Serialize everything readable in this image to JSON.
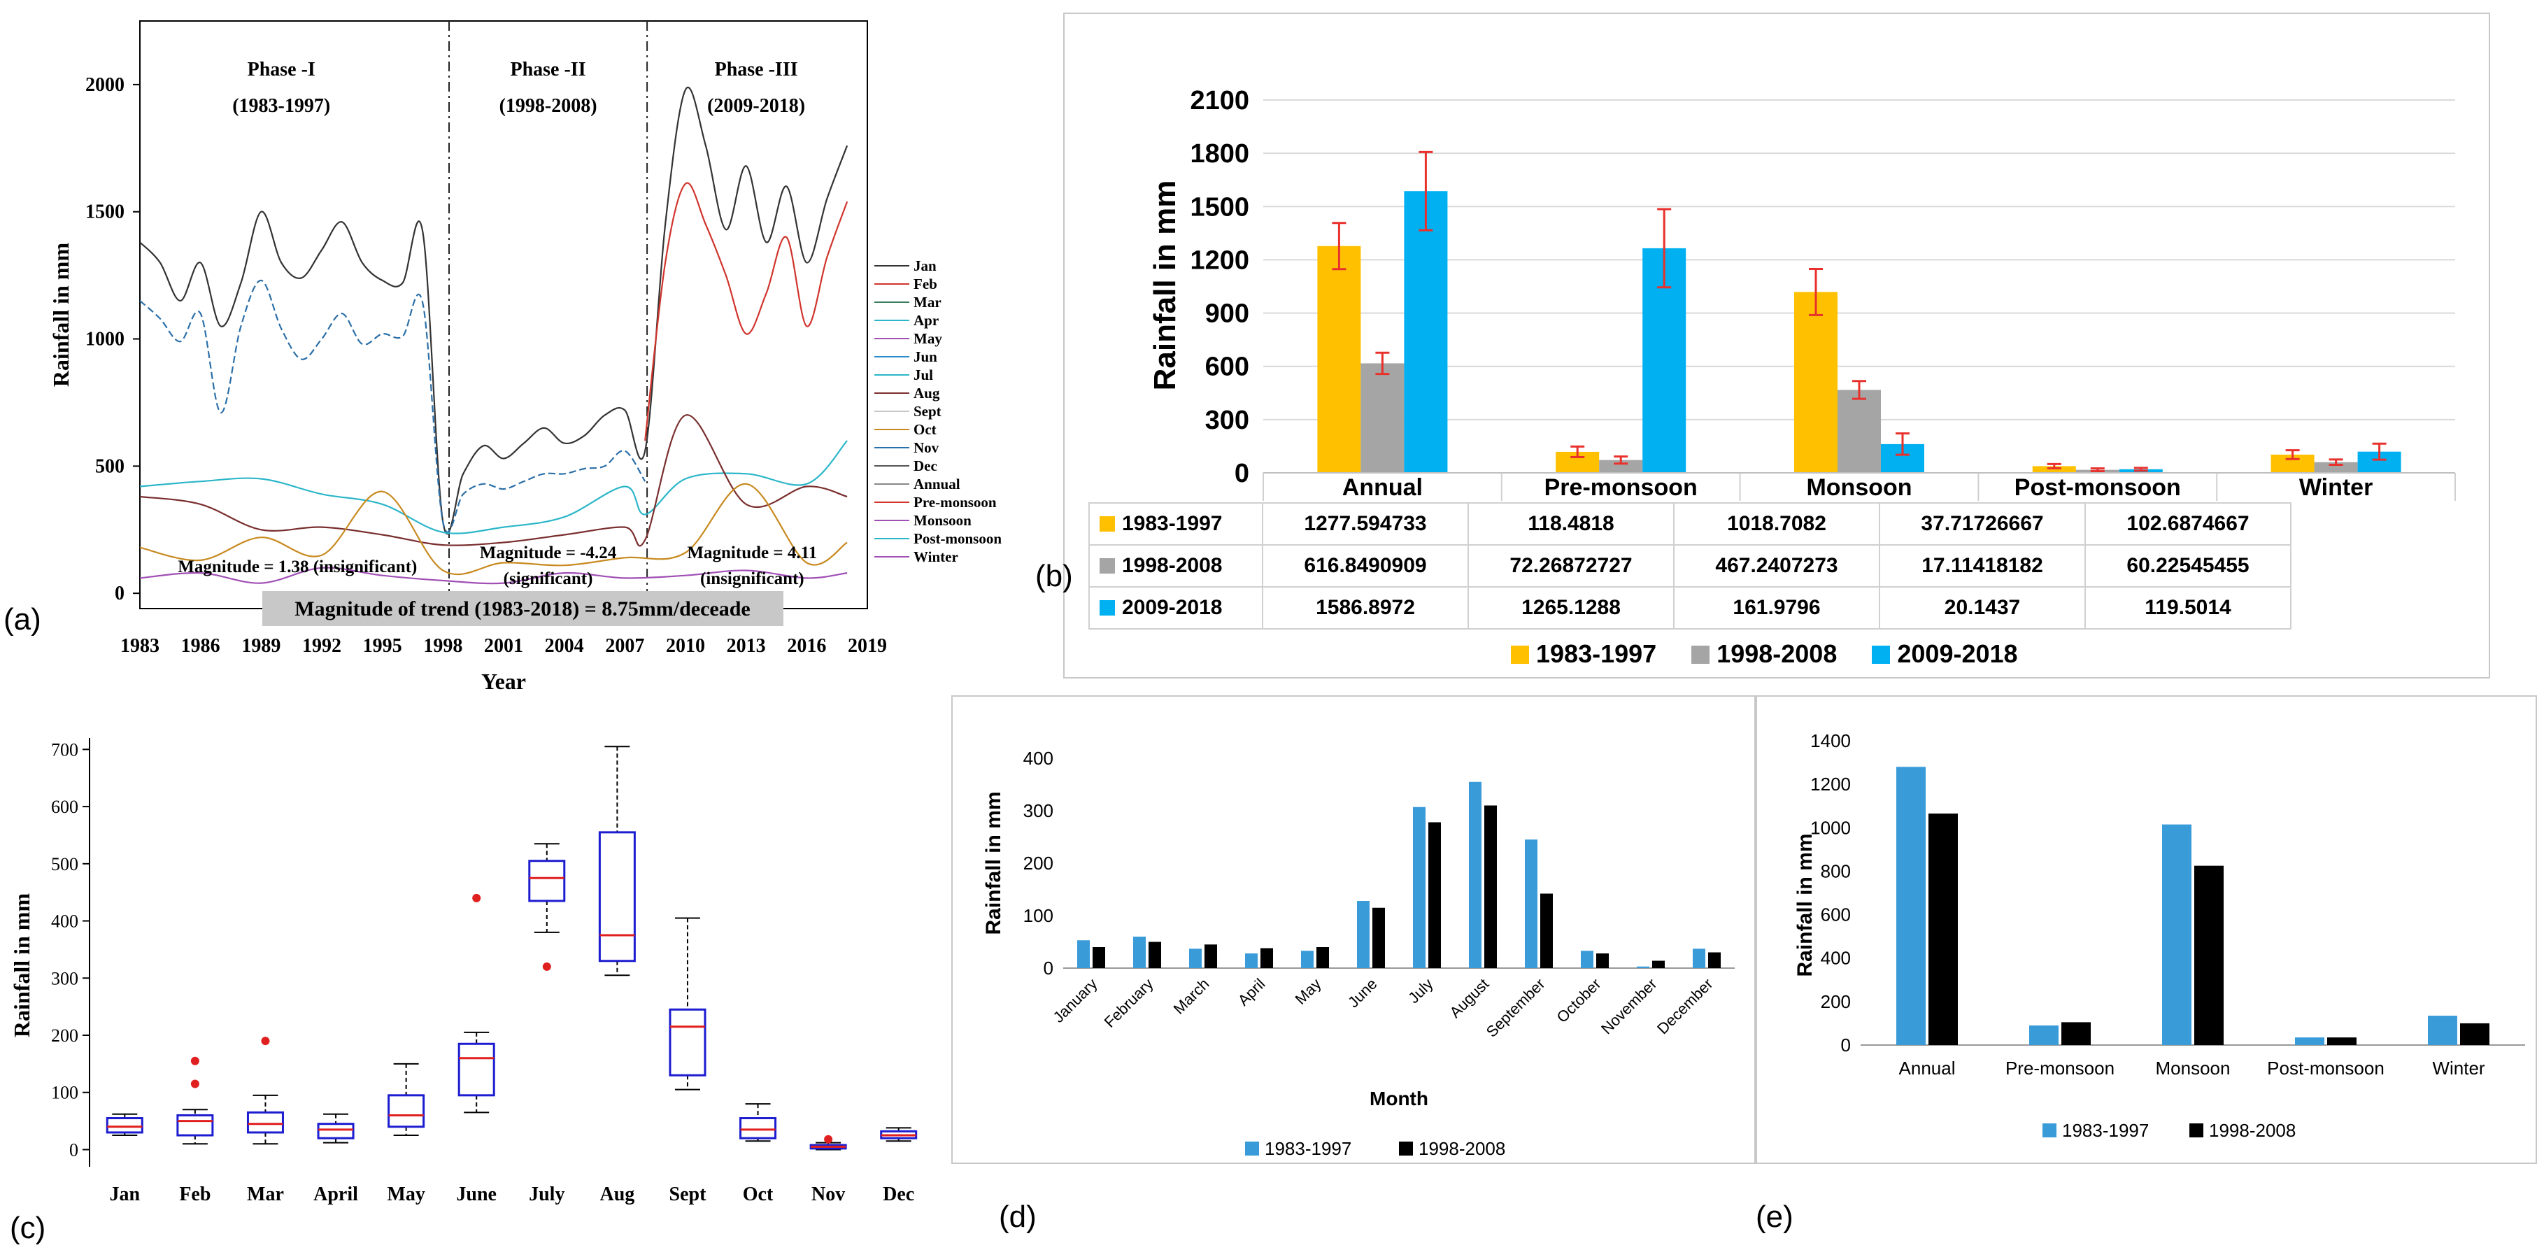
{
  "chart_data": [
    {
      "id": "a",
      "type": "line",
      "panel_label": "(a)",
      "xlabel": "Year",
      "ylabel": "Rainfall in mm",
      "x_ticks": [
        "1983",
        "1986",
        "1989",
        "1992",
        "1995",
        "1998",
        "2001",
        "2004",
        "2007",
        "2010",
        "2013",
        "2016",
        "2019"
      ],
      "y_ticks": [
        0,
        500,
        1000,
        1500,
        2000
      ],
      "xlim": [
        1983,
        2019
      ],
      "ylim": [
        -60,
        2250
      ],
      "phases": [
        {
          "name": "Phase -I",
          "range": "(1983-1997)"
        },
        {
          "name": "Phase -II",
          "range": "(1998-2008)"
        },
        {
          "name": "Phase -III",
          "range": "(2009-2018)"
        }
      ],
      "annotations": [
        "Magnitude = 1.38 (insignificant)",
        "Magnitude = -4.24",
        "(significant)",
        "Magnitude = 4.11",
        "(insignificant)"
      ],
      "trend_note": "Magnitude of trend (1983-2018) = 8.75mm/deceade",
      "legend": [
        "Jan",
        "Feb",
        "Mar",
        "Apr",
        "May",
        "Jun",
        "Jul",
        "Aug",
        "Sept",
        "Oct",
        "Nov",
        "Dec",
        "Annual",
        "Pre-monsoon",
        "Monsoon",
        "Post-monsoon",
        "Winter"
      ],
      "series": [
        {
          "name": "Jan",
          "color": "#333333",
          "x": [
            1983,
            1984,
            1985,
            1986,
            1987,
            1988,
            1989,
            1990,
            1991,
            1992,
            1993,
            1994,
            1995,
            1996,
            1997,
            1998,
            1999,
            2000,
            2001,
            2002,
            2003,
            2004,
            2005,
            2006,
            2007,
            2008,
            2009,
            2010,
            2011,
            2012,
            2013,
            2014,
            2015,
            2016,
            2017,
            2018
          ],
          "values": [
            1380,
            1300,
            1150,
            1300,
            1050,
            1220,
            1500,
            1300,
            1240,
            1350,
            1460,
            1300,
            1230,
            1220,
            1420,
            280,
            470,
            580,
            530,
            590,
            650,
            590,
            620,
            700,
            720,
            560,
            1450,
            1980,
            1760,
            1430,
            1680,
            1380,
            1600,
            1300,
            1550,
            1760
          ]
        },
        {
          "name": "Feb",
          "color": "#2b6fa8",
          "x": [
            1983,
            1984,
            1985,
            1986,
            1987,
            1988,
            1989,
            1990,
            1991,
            1992,
            1993,
            1994,
            1995,
            1996,
            1997,
            1998,
            1999,
            2000,
            2001,
            2002,
            2003,
            2004,
            2005,
            2006,
            2007,
            2008
          ],
          "values": [
            1150,
            1080,
            990,
            1100,
            710,
            1050,
            1230,
            1040,
            920,
            1000,
            1100,
            980,
            1020,
            1010,
            1140,
            280,
            390,
            430,
            410,
            440,
            470,
            470,
            490,
            500,
            560,
            440
          ]
        },
        {
          "name": "Mar",
          "color": "#d0342c",
          "x": [
            2008,
            2009,
            2010,
            2011,
            2012,
            2013,
            2014,
            2015,
            2016,
            2017,
            2018
          ],
          "values": [
            600,
            1300,
            1610,
            1450,
            1250,
            1020,
            1180,
            1400,
            1050,
            1320,
            1540
          ]
        },
        {
          "name": "Apr",
          "color": "#2bb6c9",
          "x": [
            1983,
            1986,
            1989,
            1992,
            1995,
            1998,
            2001,
            2004,
            2007,
            2008,
            2010,
            2013,
            2016,
            2018
          ],
          "values": [
            420,
            440,
            450,
            390,
            350,
            240,
            260,
            300,
            420,
            310,
            450,
            470,
            430,
            600
          ]
        },
        {
          "name": "May",
          "color": "#7a2e2e",
          "x": [
            1983,
            1986,
            1989,
            1992,
            1995,
            1998,
            2001,
            2004,
            2007,
            2008,
            2010,
            2013,
            2016,
            2018
          ],
          "values": [
            380,
            350,
            250,
            260,
            230,
            190,
            200,
            230,
            260,
            210,
            700,
            350,
            420,
            380
          ]
        },
        {
          "name": "Jun",
          "color": "#c88a20",
          "x": [
            1983,
            1986,
            1989,
            1992,
            1995,
            1998,
            2001,
            2004,
            2007,
            2010,
            2013,
            2016,
            2018
          ],
          "values": [
            180,
            130,
            220,
            150,
            400,
            90,
            120,
            110,
            140,
            160,
            430,
            120,
            200
          ]
        },
        {
          "name": "Jul",
          "color": "#a04fb5",
          "x": [
            1983,
            1986,
            1989,
            1992,
            1995,
            1998,
            2001,
            2004,
            2007,
            2010,
            2013,
            2016,
            2018
          ],
          "values": [
            60,
            80,
            40,
            100,
            70,
            50,
            40,
            80,
            60,
            70,
            90,
            60,
            80
          ]
        }
      ]
    },
    {
      "id": "b",
      "type": "bar",
      "panel_label": "(b)",
      "ylabel": "Rainfall in mm",
      "y_ticks": [
        0,
        300,
        600,
        900,
        1200,
        1500,
        1800,
        2100
      ],
      "ylim": [
        0,
        2100
      ],
      "categories": [
        "Annual",
        "Pre-monsoon",
        "Monsoon",
        "Post-monsoon",
        "Winter"
      ],
      "series": [
        {
          "name": "1983-1997",
          "color": "#ffc000",
          "values": [
            1277.594733,
            118.4818,
            1018.7082,
            37.71726667,
            102.6874667
          ],
          "table_values": [
            "1277.594733",
            "118.4818",
            "1018.7082",
            "37.71726667",
            "102.6874667"
          ],
          "errors": [
            130,
            30,
            130,
            12,
            25
          ]
        },
        {
          "name": "1998-2008",
          "color": "#a5a5a5",
          "values": [
            616.8490909,
            72.26872727,
            467.2407273,
            17.11418182,
            60.22545455
          ],
          "table_values": [
            "616.8490909",
            "72.26872727",
            "467.2407273",
            "17.11418182",
            "60.22545455"
          ],
          "errors": [
            60,
            20,
            50,
            8,
            15
          ]
        },
        {
          "name": "2009-2018",
          "color": "#00b0f0",
          "values": [
            1586.8972,
            1265.1288,
            161.9796,
            20.1437,
            119.5014
          ],
          "table_values": [
            "1586.8972",
            "1265.1288",
            "161.9796",
            "20.1437",
            "119.5014"
          ],
          "errors": [
            220,
            220,
            60,
            8,
            45
          ]
        }
      ],
      "error_color": "#e8312d"
    },
    {
      "id": "c",
      "type": "box",
      "panel_label": "(c)",
      "ylabel": "Rainfall in mm",
      "y_ticks": [
        0,
        100,
        200,
        300,
        400,
        500,
        600,
        700
      ],
      "ylim": [
        -30,
        720
      ],
      "categories": [
        "Jan",
        "Feb",
        "Mar",
        "April",
        "May",
        "June",
        "July",
        "Aug",
        "Sept",
        "Oct",
        "Nov",
        "Dec"
      ],
      "boxes": [
        {
          "min": 25,
          "q1": 30,
          "median": 40,
          "q3": 55,
          "max": 62,
          "outliers": []
        },
        {
          "min": 10,
          "q1": 25,
          "median": 50,
          "q3": 60,
          "max": 70,
          "outliers": [
            115,
            155
          ]
        },
        {
          "min": 10,
          "q1": 30,
          "median": 45,
          "q3": 65,
          "max": 95,
          "outliers": [
            190
          ]
        },
        {
          "min": 12,
          "q1": 20,
          "median": 35,
          "q3": 45,
          "max": 62,
          "outliers": []
        },
        {
          "min": 25,
          "q1": 40,
          "median": 60,
          "q3": 95,
          "max": 150,
          "outliers": []
        },
        {
          "min": 65,
          "q1": 95,
          "median": 160,
          "q3": 185,
          "max": 205,
          "outliers": [
            440
          ]
        },
        {
          "min": 380,
          "q1": 435,
          "median": 475,
          "q3": 505,
          "max": 535,
          "outliers": [
            320
          ]
        },
        {
          "min": 305,
          "q1": 330,
          "median": 375,
          "q3": 555,
          "max": 705,
          "outliers": []
        },
        {
          "min": 105,
          "q1": 130,
          "median": 215,
          "q3": 245,
          "max": 405,
          "outliers": []
        },
        {
          "min": 15,
          "q1": 20,
          "median": 35,
          "q3": 55,
          "max": 80,
          "outliers": []
        },
        {
          "min": 0,
          "q1": 2,
          "median": 5,
          "q3": 8,
          "max": 12,
          "outliers": [
            18
          ]
        },
        {
          "min": 15,
          "q1": 20,
          "median": 25,
          "q3": 32,
          "max": 38,
          "outliers": []
        }
      ]
    },
    {
      "id": "d",
      "type": "bar",
      "panel_label": "(d)",
      "xlabel": "Month",
      "ylabel": "Rainfall in mm",
      "y_ticks": [
        0,
        100,
        200,
        300,
        400
      ],
      "ylim": [
        0,
        400
      ],
      "categories": [
        "January",
        "February",
        "March",
        "April",
        "May",
        "June",
        "July",
        "August",
        "September",
        "October",
        "November",
        "December"
      ],
      "series": [
        {
          "name": "1983-1997",
          "color": "#3a9bd9",
          "values": [
            53,
            60,
            37,
            28,
            33,
            128,
            307,
            355,
            245,
            33,
            3,
            37
          ]
        },
        {
          "name": "1998-2008",
          "color": "#000000",
          "values": [
            40,
            50,
            45,
            38,
            40,
            115,
            278,
            310,
            142,
            28,
            14,
            30
          ]
        }
      ]
    },
    {
      "id": "e",
      "type": "bar",
      "panel_label": "(e)",
      "ylabel": "Rainfall in mm",
      "y_ticks": [
        0,
        200,
        400,
        600,
        800,
        1000,
        1200,
        1400
      ],
      "ylim": [
        0,
        1400
      ],
      "categories": [
        "Annual",
        "Pre-monsoon",
        "Monsoon",
        "Post-monsoon",
        "Winter"
      ],
      "series": [
        {
          "name": "1983-1997",
          "color": "#3a9bd9",
          "values": [
            1280,
            90,
            1015,
            35,
            135
          ]
        },
        {
          "name": "1998-2008",
          "color": "#000000",
          "values": [
            1065,
            105,
            825,
            35,
            100
          ]
        }
      ]
    }
  ]
}
